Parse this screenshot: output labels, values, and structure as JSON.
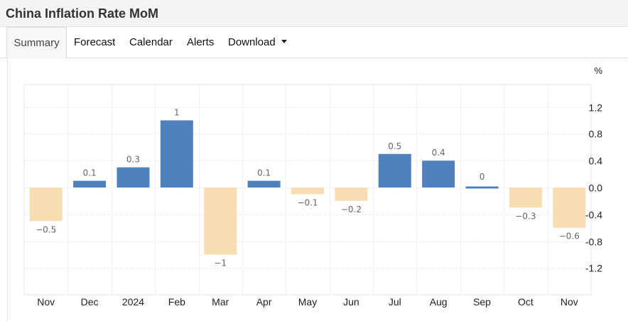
{
  "header": {
    "title": "China Inflation Rate MoM"
  },
  "tabs": [
    {
      "label": "Summary",
      "active": true
    },
    {
      "label": "Forecast",
      "active": false
    },
    {
      "label": "Calendar",
      "active": false
    },
    {
      "label": "Alerts",
      "active": false
    },
    {
      "label": "Download",
      "active": false,
      "dropdown": true
    }
  ],
  "colors": {
    "positive": "#4f81bd",
    "negative": "#f6deb2",
    "grid": "#e8e8e8"
  },
  "chart_data": {
    "type": "bar",
    "unit": "%",
    "categories": [
      "Nov",
      "Dec",
      "2024",
      "Feb",
      "Mar",
      "Apr",
      "May",
      "Jun",
      "Jul",
      "Aug",
      "Sep",
      "Oct",
      "Nov"
    ],
    "values": [
      -0.5,
      0.1,
      0.3,
      1,
      -1,
      0.1,
      -0.1,
      -0.2,
      0.5,
      0.4,
      0,
      -0.3,
      -0.6
    ],
    "data_labels": [
      "−0.5",
      "0.1",
      "0.3",
      "1",
      "−1",
      "0.1",
      "−0.1",
      "−0.2",
      "0.5",
      "0.4",
      "0",
      "−0.3",
      "−0.6"
    ],
    "y_ticks": [
      "1.2",
      "0.8",
      "0.4",
      "0.0",
      "-0.4",
      "-0.8",
      "-1.2"
    ],
    "y_tick_values": [
      1.2,
      0.8,
      0.4,
      0,
      -0.4,
      -0.8,
      -1.2
    ],
    "ylim": [
      -1.6,
      1.5
    ],
    "y_axis_position": "right",
    "grid": true,
    "legend": false,
    "title": "",
    "xlabel": "",
    "ylabel": ""
  }
}
